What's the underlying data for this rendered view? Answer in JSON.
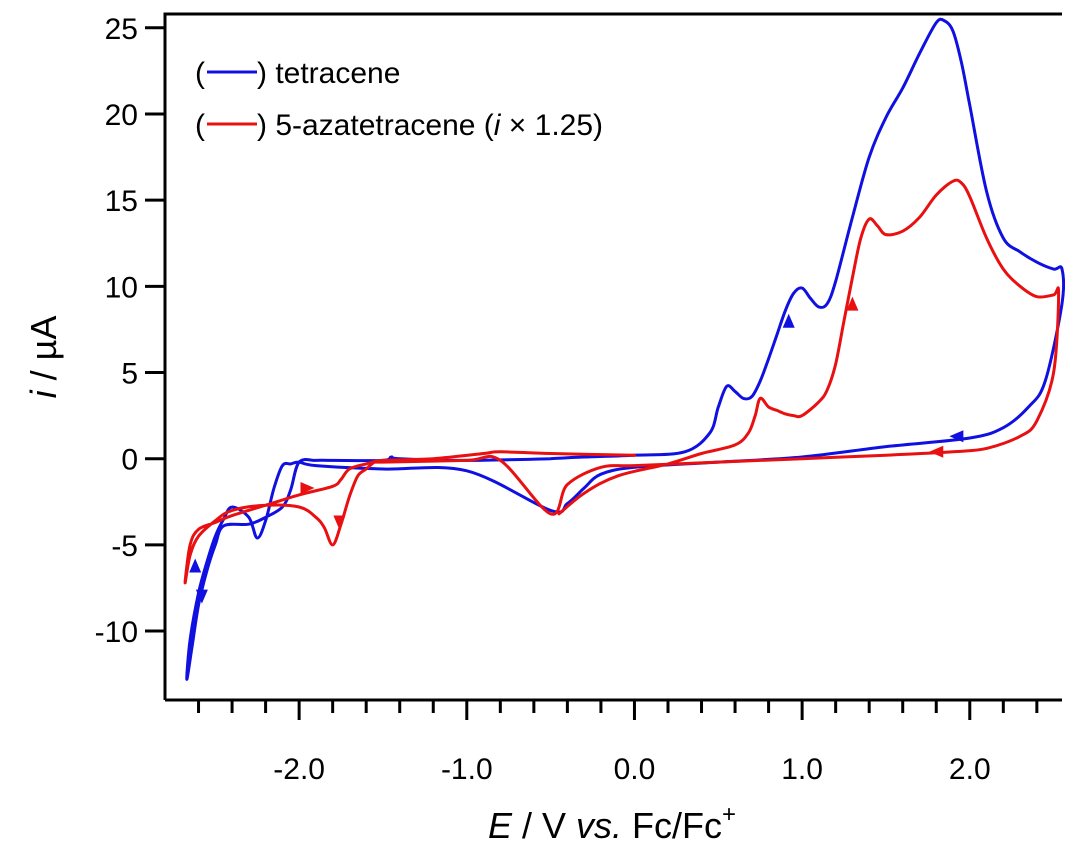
{
  "chart_data": {
    "type": "line",
    "title": "",
    "xlabel": {
      "var": "E",
      "rest": " / V ",
      "vs": "vs.",
      "ref": " Fc/Fc",
      "sup": "+"
    },
    "ylabel": {
      "var": "i",
      "rest": " / µA"
    },
    "xlim": [
      -2.8,
      2.55
    ],
    "ylim": [
      -14,
      25.8
    ],
    "x_major_ticks": [
      -2.0,
      -1.0,
      0.0,
      1.0,
      2.0
    ],
    "x_tick_labels": [
      "-2.0",
      "-1.0",
      "0.0",
      "1.0",
      "2.0"
    ],
    "x_minor_step": 0.2,
    "y_major_ticks": [
      -10,
      -5,
      0,
      5,
      10,
      15,
      20,
      25
    ],
    "y_tick_labels": [
      "-10",
      "-5",
      "0",
      "5",
      "10",
      "15",
      "20",
      "25"
    ],
    "grid": false,
    "legend_position": "top-left",
    "series": [
      {
        "name": "tetracene",
        "legend_label": {
          "open": "(",
          "close": ") tetracene"
        },
        "color": "#1010e0",
        "x": [
          -0.5,
          -0.3,
          0.0,
          0.3,
          0.45,
          0.5,
          0.55,
          0.6,
          0.65,
          0.7,
          0.75,
          0.8,
          0.85,
          0.9,
          0.95,
          1.0,
          1.05,
          1.1,
          1.15,
          1.2,
          1.3,
          1.4,
          1.5,
          1.6,
          1.7,
          1.8,
          1.85,
          1.9,
          1.95,
          2.0,
          2.1,
          2.2,
          2.3,
          2.4,
          2.5,
          2.55,
          2.55,
          2.45,
          2.35,
          2.2,
          2.0,
          1.5,
          1.0,
          0.5,
          0.0,
          -0.2,
          -0.3,
          -0.4,
          -0.5,
          -1.0,
          -1.5,
          -1.9,
          -2.0,
          -2.05,
          -2.1,
          -2.15,
          -2.2,
          -2.25,
          -2.3,
          -2.4,
          -2.45,
          -2.5,
          -2.55,
          -2.6,
          -2.65,
          -2.67,
          -2.64,
          -2.6,
          -2.55,
          -2.5,
          -2.45,
          -2.3,
          -2.2,
          -2.1,
          -2.05,
          -2.0,
          -1.9,
          -1.8,
          -1.5,
          -1.45,
          -1.4,
          -1.0,
          -0.5
        ],
        "y": [
          0.0,
          0.1,
          0.2,
          0.4,
          1.5,
          3.0,
          4.2,
          3.9,
          3.5,
          3.6,
          4.5,
          5.8,
          7.2,
          8.6,
          9.6,
          9.9,
          9.3,
          8.8,
          9.0,
          10.3,
          14.0,
          17.5,
          19.8,
          21.5,
          23.5,
          25.3,
          25.4,
          24.8,
          23.0,
          20.5,
          15.5,
          12.8,
          12.0,
          11.4,
          11.0,
          11.0,
          9.0,
          4.5,
          3.0,
          1.8,
          1.2,
          0.7,
          0.1,
          -0.2,
          -0.5,
          -0.9,
          -1.7,
          -2.6,
          -3.0,
          -0.7,
          -0.6,
          -0.4,
          -0.2,
          -0.3,
          -0.4,
          -1.7,
          -3.6,
          -4.6,
          -3.4,
          -2.8,
          -3.5,
          -4.5,
          -6.0,
          -7.8,
          -10.5,
          -12.8,
          -11.0,
          -8.5,
          -6.5,
          -5.0,
          -3.9,
          -3.8,
          -3.4,
          -2.8,
          -1.8,
          -0.2,
          -0.1,
          -0.1,
          -0.1,
          0.1,
          0.0,
          -0.1,
          0.0
        ],
        "arrows": [
          {
            "x": 0.92,
            "y": 8.0,
            "dir": "up"
          },
          {
            "x": 1.92,
            "y": 1.3,
            "dir": "left"
          },
          {
            "x": -2.58,
            "y": -8.0,
            "dir": "down"
          },
          {
            "x": -2.62,
            "y": -6.2,
            "dir": "up"
          }
        ]
      },
      {
        "name": "5-azatetracene (i × 1.25)",
        "legend_label": {
          "open": "(",
          "close_pre": ") 5-azatetracene (",
          "i": "i",
          "close_post": " × 1.25)"
        },
        "color": "#e81010",
        "x": [
          -0.45,
          -0.3,
          -0.1,
          0.2,
          0.4,
          0.6,
          0.68,
          0.72,
          0.75,
          0.8,
          0.85,
          0.9,
          0.95,
          1.0,
          1.1,
          1.15,
          1.2,
          1.25,
          1.3,
          1.35,
          1.4,
          1.45,
          1.5,
          1.6,
          1.7,
          1.8,
          1.9,
          1.95,
          2.0,
          2.1,
          2.2,
          2.3,
          2.4,
          2.5,
          2.53,
          2.5,
          2.4,
          2.3,
          2.1,
          1.9,
          1.5,
          1.0,
          0.5,
          0.0,
          -0.2,
          -0.4,
          -0.5,
          -0.8,
          -1.0,
          -1.5,
          -1.55,
          -1.6,
          -1.65,
          -1.7,
          -1.75,
          -1.8,
          -1.85,
          -1.9,
          -2.0,
          -2.2,
          -2.4,
          -2.5,
          -2.6,
          -2.65,
          -2.68,
          -2.65,
          -2.6,
          -2.5,
          -2.4,
          -2.2,
          -2.0,
          -1.8,
          -1.75,
          -1.7,
          -1.6,
          -1.5,
          -1.2,
          -0.9,
          -0.8,
          -0.5,
          0.0
        ],
        "y": [
          -3.2,
          -2.0,
          -1.0,
          -0.3,
          0.3,
          0.8,
          1.5,
          2.5,
          3.5,
          3.0,
          2.8,
          2.6,
          2.5,
          2.5,
          3.3,
          4.0,
          5.5,
          8.0,
          10.5,
          12.8,
          13.9,
          13.5,
          13.0,
          13.2,
          14.0,
          15.3,
          16.1,
          16.0,
          15.2,
          12.8,
          11.0,
          10.0,
          9.4,
          9.5,
          9.6,
          5.0,
          2.2,
          1.3,
          0.6,
          0.4,
          0.2,
          0.0,
          -0.2,
          -0.4,
          -0.5,
          -1.5,
          -3.2,
          -0.1,
          -0.1,
          -0.2,
          -0.2,
          -0.6,
          -1.0,
          -2.2,
          -3.8,
          -5.0,
          -4.0,
          -3.4,
          -2.8,
          -2.7,
          -3.0,
          -3.6,
          -4.5,
          -5.6,
          -7.2,
          -5.0,
          -4.1,
          -3.7,
          -3.3,
          -2.7,
          -2.1,
          -1.6,
          -1.2,
          -0.6,
          -0.3,
          -0.1,
          0.0,
          0.3,
          0.4,
          0.3,
          0.2
        ],
        "arrows": [
          {
            "x": 1.3,
            "y": 9.0,
            "dir": "up"
          },
          {
            "x": 1.8,
            "y": 0.4,
            "dir": "left"
          },
          {
            "x": -1.76,
            "y": -3.7,
            "dir": "down"
          },
          {
            "x": -1.95,
            "y": -1.7,
            "dir": "right"
          }
        ]
      }
    ]
  }
}
